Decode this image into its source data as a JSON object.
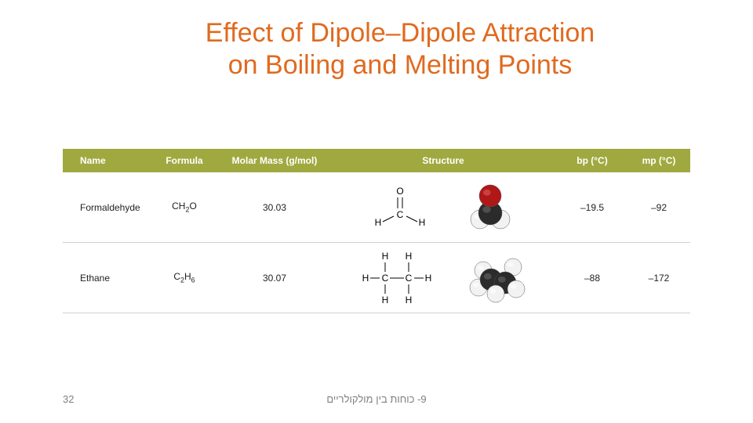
{
  "title_line1": "Effect of Dipole–Dipole Attraction",
  "title_line2": "on Boiling and Melting Points",
  "title_color": "#e06a1f",
  "header_bg": "#a0a93f",
  "columns": {
    "name": "Name",
    "formula": "Formula",
    "mass": "Molar Mass (g/mol)",
    "structure": "Structure",
    "bp": "bp (°C)",
    "mp": "mp (°C)"
  },
  "rows": [
    {
      "name": "Formaldehyde",
      "formula_html": "CH<sub>2</sub>O",
      "mass": "30.03",
      "bp": "–19.5",
      "mp": "–92",
      "lewis": "formaldehyde",
      "model": "formaldehyde"
    },
    {
      "name": "Ethane",
      "formula_html": "C<sub>2</sub>H<sub>6</sub>",
      "mass": "30.07",
      "bp": "–88",
      "mp": "–172",
      "lewis": "ethane",
      "model": "ethane"
    }
  ],
  "model_colors": {
    "oxygen": "#b01717",
    "carbon": "#2b2b2b",
    "hydrogen": "#f2f2f2",
    "outline": "#555555"
  },
  "footer": {
    "page": "32",
    "text": "9- כוחות בין מולקולריים"
  }
}
